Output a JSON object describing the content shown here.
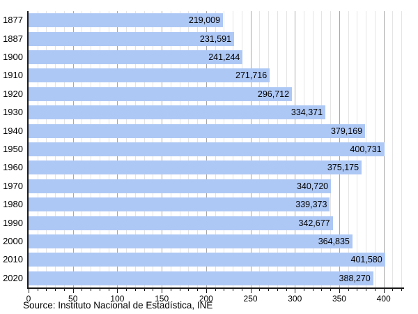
{
  "chart_data": {
    "type": "bar",
    "orientation": "horizontal",
    "title": "",
    "xlabel": "",
    "ylabel": "",
    "categories": [
      "1877",
      "1887",
      "1900",
      "1910",
      "1920",
      "1930",
      "1940",
      "1950",
      "1960",
      "1970",
      "1980",
      "1990",
      "2000",
      "2010",
      "2020"
    ],
    "values": [
      219009,
      231591,
      241244,
      271716,
      296712,
      334371,
      379169,
      400731,
      375175,
      340720,
      339373,
      342677,
      364835,
      401580,
      388270
    ],
    "value_labels": [
      "219,009",
      "231,591",
      "241,244",
      "271,716",
      "296,712",
      "334,371",
      "379,169",
      "400,731",
      "375,175",
      "340,720",
      "339,373",
      "342,677",
      "364,835",
      "401,580",
      "388,270"
    ],
    "axis_unit": "thousands",
    "xlim": [
      0,
      423
    ],
    "x_major_ticks": [
      0,
      50,
      100,
      150,
      200,
      250,
      300,
      350,
      400
    ],
    "x_minor_step": 10,
    "x_minor_max": 420,
    "grid": true,
    "legend": "none",
    "colors": {
      "bar": "#aec8f5",
      "major_grid": "#a8a8a8",
      "minor_grid": "#e4e4e4",
      "axis": "#1a1a1a",
      "text": "#000000",
      "background": "#ffffff"
    }
  },
  "source": "Source: Instituto Nacional de Estadística, INE"
}
